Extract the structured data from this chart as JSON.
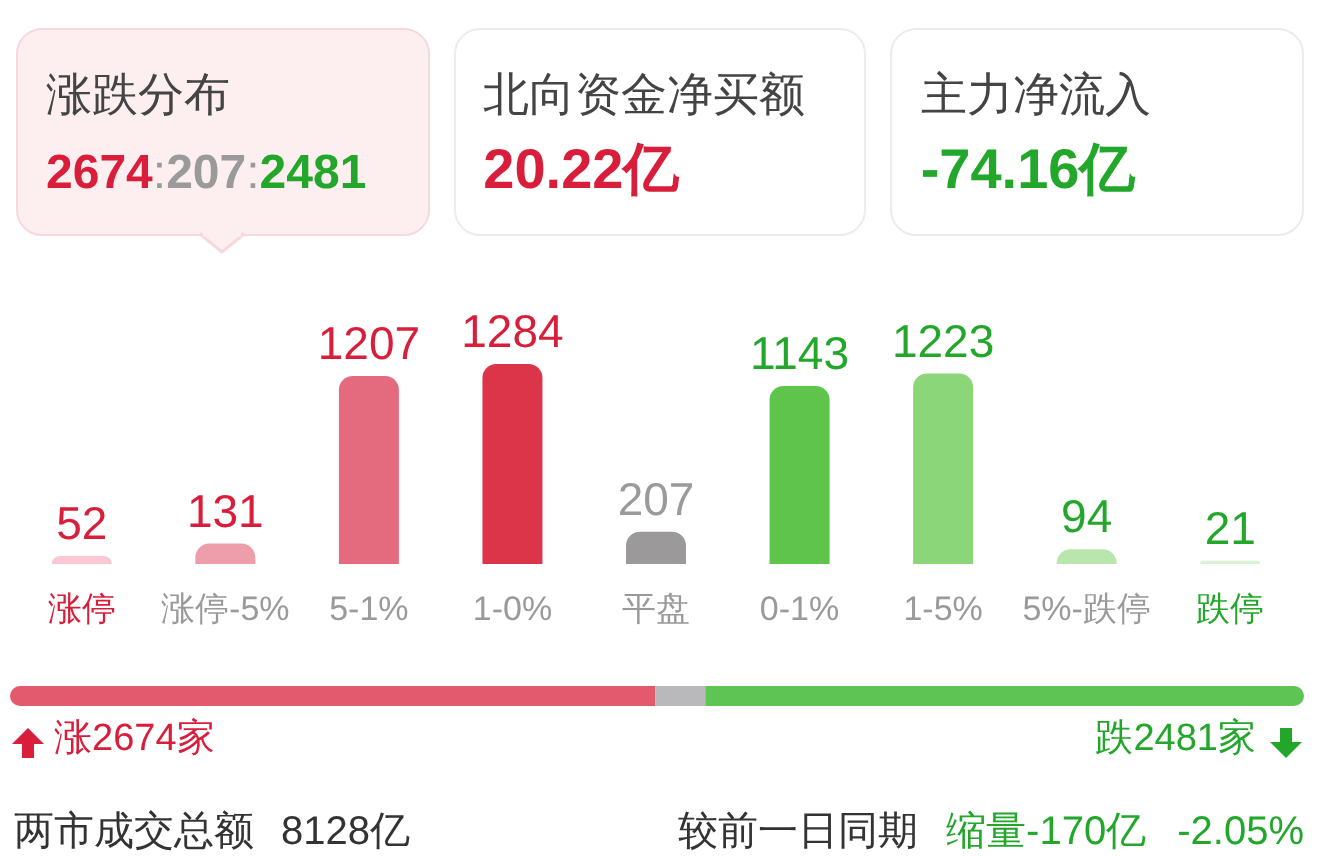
{
  "chart_data": [
    {
      "type": "other",
      "annotations": [
        "涨跌分布",
        "2674:207:2481",
        "北向资金净买额",
        "20.22亿",
        "主力净流入",
        "-74.16亿"
      ]
    },
    {
      "type": "bar",
      "categories": [
        "涨停",
        "涨停-5%",
        "5-1%",
        "1-0%",
        "平盘",
        "0-1%",
        "1-5%",
        "5%-跌停",
        "跌停"
      ],
      "values": [
        52,
        131,
        1207,
        1284,
        207,
        1143,
        1223,
        94,
        21
      ],
      "colors": [
        "#f9c8d2",
        "#ee9daa",
        "#e36b7d",
        "#dc3549",
        "#9b999a",
        "#5ec44b",
        "#8bd679",
        "#b8e6ad",
        "#daf2d4"
      ],
      "data_labels": true,
      "tick_labels": "x"
    },
    {
      "type": "bar",
      "orientation": "horizontal",
      "stacked": true,
      "categories": [
        null
      ],
      "series": [
        {
          "color": "#e35a6e",
          "values": [
            2674
          ],
          "value_labels": [
            "涨2674家"
          ]
        },
        {
          "color": "#b9b8bb",
          "values": [
            207
          ],
          "value_labels": [
            null
          ]
        },
        {
          "color": "#5ec453",
          "values": [
            2481
          ],
          "value_labels": [
            "跌2481家"
          ]
        }
      ],
      "tick_labels": false,
      "annotations": [
        "两市成交总额 8128亿",
        "较前一日同期",
        "缩量-170亿 -2.05%"
      ]
    }
  ]
}
